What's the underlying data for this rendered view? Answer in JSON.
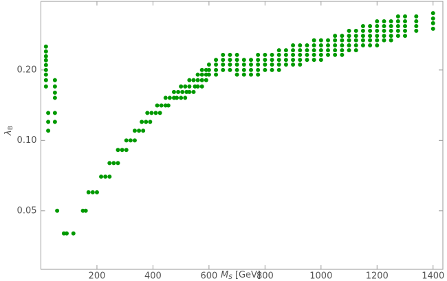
{
  "chart_data": {
    "type": "scatter",
    "xlabel": {
      "main": "M",
      "sub": "S",
      "rest": "[GeV]"
    },
    "ylabel": {
      "main": "λ",
      "sub": "B"
    },
    "color": "#009900",
    "xlim": [
      0,
      1435
    ],
    "ylim": [
      0.0281,
      0.393
    ],
    "ylog": true,
    "xticks": [
      200,
      400,
      600,
      800,
      1000,
      1200,
      1400
    ],
    "yticks": [
      0.05,
      {
        "value": 0.1,
        "label": "0.10"
      },
      {
        "value": 0.2,
        "label": "0.20"
      }
    ],
    "x": [
      18,
      18,
      18,
      18,
      18,
      18,
      18,
      18,
      18,
      26,
      26,
      26,
      50,
      50,
      50,
      50,
      50,
      50,
      58,
      82,
      92,
      116,
      150,
      160,
      170,
      185,
      200,
      215,
      230,
      245,
      245,
      260,
      275,
      275,
      290,
      305,
      305,
      320,
      335,
      335,
      350,
      365,
      360,
      375,
      390,
      380,
      395,
      410,
      425,
      415,
      430,
      445,
      455,
      445,
      460,
      475,
      485,
      475,
      490,
      505,
      520,
      530,
      545,
      500,
      515,
      500,
      515,
      530,
      550,
      560,
      575,
      530,
      545,
      560,
      575,
      590,
      560,
      575,
      590,
      575,
      590,
      600,
      600,
      600,
      625,
      625,
      625,
      625,
      650,
      650,
      650,
      650,
      675,
      675,
      675,
      675,
      700,
      700,
      700,
      700,
      700,
      725,
      725,
      725,
      725,
      750,
      750,
      750,
      750,
      775,
      775,
      775,
      775,
      775,
      800,
      800,
      800,
      800,
      825,
      825,
      825,
      825,
      850,
      850,
      850,
      850,
      850,
      875,
      875,
      875,
      875,
      900,
      900,
      900,
      900,
      900,
      925,
      925,
      925,
      925,
      925,
      950,
      950,
      950,
      950,
      975,
      975,
      975,
      975,
      975,
      1000,
      1000,
      1000,
      1000,
      1000,
      1025,
      1025,
      1025,
      1025,
      1050,
      1050,
      1050,
      1050,
      1050,
      1075,
      1075,
      1075,
      1075,
      1075,
      1100,
      1100,
      1100,
      1100,
      1100,
      1125,
      1125,
      1125,
      1125,
      1125,
      1150,
      1150,
      1150,
      1150,
      1150,
      1175,
      1175,
      1175,
      1175,
      1175,
      1200,
      1200,
      1200,
      1200,
      1200,
      1200,
      1225,
      1225,
      1225,
      1225,
      1225,
      1250,
      1250,
      1250,
      1250,
      1250,
      1275,
      1275,
      1275,
      1275,
      1275,
      1300,
      1300,
      1300,
      1300,
      1300,
      1340,
      1340,
      1340,
      1340,
      1400,
      1400,
      1400,
      1400
    ],
    "values": [
      0.252,
      0.24,
      0.229,
      0.22,
      0.21,
      0.2,
      0.191,
      0.181,
      0.17,
      0.131,
      0.12,
      0.11,
      0.181,
      0.17,
      0.16,
      0.152,
      0.131,
      0.12,
      0.05,
      0.04,
      0.04,
      0.04,
      0.05,
      0.05,
      0.06,
      0.06,
      0.06,
      0.07,
      0.07,
      0.07,
      0.08,
      0.08,
      0.08,
      0.091,
      0.091,
      0.091,
      0.1,
      0.1,
      0.1,
      0.11,
      0.11,
      0.11,
      0.12,
      0.12,
      0.12,
      0.131,
      0.131,
      0.131,
      0.131,
      0.141,
      0.141,
      0.141,
      0.141,
      0.152,
      0.152,
      0.152,
      0.152,
      0.161,
      0.161,
      0.161,
      0.161,
      0.161,
      0.161,
      0.152,
      0.152,
      0.17,
      0.17,
      0.17,
      0.17,
      0.17,
      0.17,
      0.181,
      0.181,
      0.181,
      0.181,
      0.181,
      0.191,
      0.191,
      0.191,
      0.2,
      0.2,
      0.191,
      0.2,
      0.211,
      0.191,
      0.2,
      0.211,
      0.221,
      0.2,
      0.211,
      0.221,
      0.232,
      0.2,
      0.211,
      0.221,
      0.232,
      0.191,
      0.2,
      0.211,
      0.221,
      0.232,
      0.191,
      0.2,
      0.211,
      0.221,
      0.191,
      0.2,
      0.211,
      0.221,
      0.191,
      0.2,
      0.211,
      0.221,
      0.232,
      0.2,
      0.211,
      0.221,
      0.232,
      0.2,
      0.211,
      0.221,
      0.232,
      0.2,
      0.211,
      0.221,
      0.232,
      0.243,
      0.211,
      0.221,
      0.232,
      0.243,
      0.211,
      0.221,
      0.232,
      0.243,
      0.255,
      0.211,
      0.221,
      0.232,
      0.243,
      0.255,
      0.221,
      0.232,
      0.243,
      0.255,
      0.221,
      0.232,
      0.243,
      0.255,
      0.268,
      0.221,
      0.232,
      0.243,
      0.255,
      0.268,
      0.232,
      0.243,
      0.255,
      0.268,
      0.232,
      0.243,
      0.255,
      0.268,
      0.28,
      0.232,
      0.243,
      0.255,
      0.268,
      0.28,
      0.243,
      0.255,
      0.268,
      0.28,
      0.294,
      0.243,
      0.255,
      0.268,
      0.28,
      0.294,
      0.255,
      0.268,
      0.28,
      0.294,
      0.308,
      0.255,
      0.268,
      0.28,
      0.294,
      0.308,
      0.255,
      0.268,
      0.28,
      0.294,
      0.308,
      0.323,
      0.268,
      0.28,
      0.294,
      0.308,
      0.323,
      0.268,
      0.28,
      0.294,
      0.308,
      0.323,
      0.28,
      0.294,
      0.308,
      0.323,
      0.339,
      0.28,
      0.294,
      0.308,
      0.323,
      0.339,
      0.294,
      0.308,
      0.323,
      0.339,
      0.3,
      0.317,
      0.332,
      0.35
    ]
  }
}
